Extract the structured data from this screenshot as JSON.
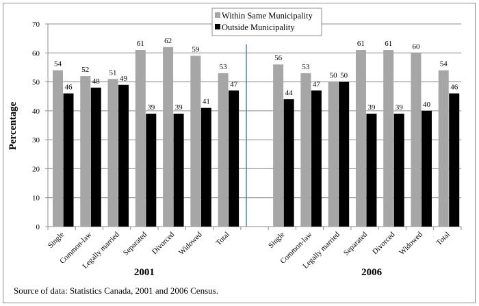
{
  "chart_data": {
    "type": "bar",
    "groups": [
      {
        "label": "2001",
        "categories": [
          "Single",
          "Common-law",
          "Legally married",
          "Separated",
          "Divorced",
          "Widowed",
          "Total"
        ]
      },
      {
        "label": "2006",
        "categories": [
          "Single",
          "Common-law",
          "Legally married",
          "Separated",
          "Divorced",
          "Widowed",
          "Total"
        ]
      }
    ],
    "series": [
      {
        "name": "Within Same Municipality",
        "color": "#a6a6a6",
        "values": [
          [
            54,
            52,
            51,
            61,
            62,
            59,
            53
          ],
          [
            56,
            53,
            50,
            61,
            61,
            60,
            54
          ]
        ]
      },
      {
        "name": "Outside Municipality",
        "color": "#000000",
        "values": [
          [
            46,
            48,
            49,
            39,
            39,
            41,
            47
          ],
          [
            44,
            47,
            50,
            39,
            39,
            40,
            46
          ]
        ]
      }
    ],
    "ylabel": "Percentage",
    "ylim": [
      0,
      70
    ],
    "yticks": [
      0,
      10,
      20,
      30,
      40,
      50,
      60,
      70
    ],
    "grid": true,
    "legend": "top-center",
    "divider_color": "#4f81bd"
  },
  "source": "Source of data:  Statistics Canada, 2001 and 2006 Census."
}
